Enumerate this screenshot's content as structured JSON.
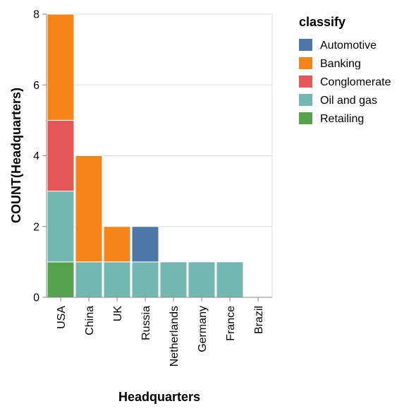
{
  "chart_data": {
    "type": "bar",
    "stacked": true,
    "xlabel": "Headquarters",
    "ylabel": "COUNT(Headquarters)",
    "categories": [
      "USA",
      "China",
      "UK",
      "Russia",
      "Netherlands",
      "Germany",
      "France",
      "Brazil"
    ],
    "series": [
      {
        "name": "Retailing",
        "color": "#54a24b",
        "values": [
          1,
          0,
          0,
          0,
          0,
          0,
          0,
          0
        ]
      },
      {
        "name": "Oil and gas",
        "color": "#72b7b2",
        "values": [
          2,
          1,
          1,
          1,
          1,
          1,
          1,
          0
        ]
      },
      {
        "name": "Conglomerate",
        "color": "#e45756",
        "values": [
          2,
          0,
          0,
          0,
          0,
          0,
          0,
          0
        ]
      },
      {
        "name": "Banking",
        "color": "#f58518",
        "values": [
          3,
          3,
          1,
          0,
          0,
          0,
          0,
          0
        ]
      },
      {
        "name": "Automotive",
        "color": "#4c78a8",
        "values": [
          0,
          0,
          0,
          1,
          0,
          0,
          0,
          0
        ]
      }
    ],
    "ylim": [
      0,
      8
    ],
    "yticks": [
      0,
      2,
      4,
      6,
      8
    ],
    "grid": true,
    "legend": {
      "title": "classify",
      "position": "right",
      "items": [
        "Automotive",
        "Banking",
        "Conglomerate",
        "Oil and gas",
        "Retailing"
      ]
    }
  }
}
